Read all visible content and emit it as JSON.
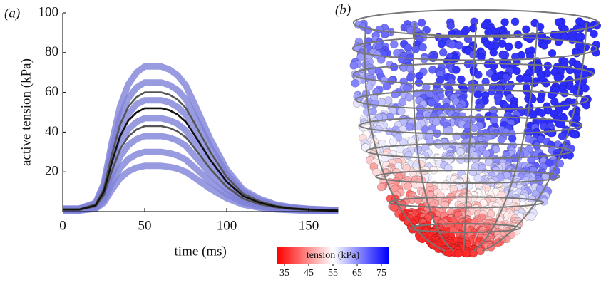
{
  "chart_data": [
    {
      "type": "line",
      "panel_label": "(a)",
      "xlabel": "time (ms)",
      "ylabel": "active tension (kPa)",
      "x": [
        0,
        10,
        20,
        25,
        30,
        35,
        40,
        45,
        50,
        55,
        60,
        65,
        70,
        75,
        80,
        90,
        100,
        110,
        120,
        130,
        140,
        150,
        168
      ],
      "xlim": [
        0,
        168
      ],
      "ylim": [
        0,
        100
      ],
      "xticks": [
        0,
        50,
        100,
        150
      ],
      "yticks": [
        20,
        40,
        60,
        80,
        100
      ],
      "series": [
        {
          "color": "#7f82d8",
          "values": [
            1.5,
            1.5,
            4.4,
            13.9,
            35,
            53,
            64,
            70,
            73,
            73,
            73,
            71.5,
            68.6,
            63.5,
            54.8,
            36.5,
            21.2,
            11,
            6.4,
            3.5,
            2.1,
            1.4,
            0.7
          ]
        },
        {
          "color": "#7f82d8",
          "values": [
            1.3,
            1.3,
            3.9,
            12.4,
            31,
            47.5,
            57,
            62.4,
            65,
            65,
            65,
            63.7,
            61.1,
            56.6,
            48.8,
            32.5,
            18.9,
            9.8,
            5.7,
            3.1,
            1.9,
            1.2,
            0.7
          ]
        },
        {
          "color": "#7f82d8",
          "values": [
            1.1,
            1.1,
            3.4,
            10.6,
            27,
            41,
            49,
            54,
            56,
            56,
            56,
            55,
            52.6,
            48.7,
            42,
            28,
            16.2,
            8.4,
            4.9,
            2.7,
            1.6,
            1.1,
            0.6
          ]
        },
        {
          "color": "#7f82d8",
          "values": [
            0.9,
            0.9,
            2.8,
            8.9,
            22.6,
            34.3,
            41.4,
            45.1,
            47,
            47,
            47,
            46,
            44.2,
            40.9,
            35.3,
            23.5,
            13.6,
            7,
            4.1,
            2.3,
            1.4,
            0.9,
            0.5
          ]
        },
        {
          "color": "#7f82d8",
          "values": [
            0.8,
            0.8,
            2.3,
            7.2,
            18.2,
            27.7,
            33.4,
            36.5,
            38,
            38,
            38,
            37.2,
            35.7,
            33.1,
            28.5,
            19,
            11,
            5.7,
            3.3,
            1.8,
            1.1,
            0.7,
            0.4
          ]
        },
        {
          "color": "#7f82d8",
          "values": [
            0.6,
            0.6,
            1.8,
            5.7,
            14.4,
            21.9,
            26.4,
            28.8,
            30,
            30,
            30,
            29.4,
            28.2,
            26.1,
            22.5,
            15,
            8.7,
            4.5,
            2.6,
            1.4,
            0.9,
            0.6,
            0.3
          ]
        },
        {
          "color": "#7f82d8",
          "values": [
            0.5,
            0.5,
            1.4,
            4.4,
            11,
            16.8,
            20.2,
            22.1,
            23,
            23,
            23,
            22.5,
            21.6,
            20,
            17.3,
            11.5,
            6.7,
            3.5,
            2,
            1.1,
            0.7,
            0.4,
            0.2
          ]
        },
        {
          "color": "#555555",
          "values": [
            1.2,
            1.2,
            3.6,
            11.4,
            28.8,
            43.8,
            52.8,
            57.6,
            60,
            60,
            60,
            58.8,
            56.4,
            52.2,
            45,
            30,
            17.4,
            9,
            5.2,
            2.9,
            1.7,
            1.1,
            0.6
          ]
        },
        {
          "color": "#555555",
          "values": [
            0.9,
            0.9,
            2.6,
            8.2,
            20.6,
            31.4,
            37.8,
            41.3,
            43,
            43,
            43,
            42.1,
            40.4,
            37.4,
            32.3,
            21.5,
            12.5,
            6.5,
            3.7,
            2.1,
            1.2,
            0.8,
            0.4
          ]
        },
        {
          "color": "#111111",
          "values": [
            1,
            1,
            3.1,
            9.9,
            25,
            38,
            45.8,
            49.9,
            52,
            52,
            52,
            51,
            48.9,
            45.2,
            39,
            26,
            15.1,
            7.8,
            4.5,
            2.5,
            1.5,
            1,
            0.5
          ]
        }
      ]
    },
    {
      "type": "colorbar",
      "panel_label": "(b)",
      "label": "tension (kPa)",
      "lim": [
        35,
        75
      ],
      "ticks": [
        35,
        45,
        55,
        65,
        75
      ],
      "colors": [
        "#ff0000",
        "#ffffff",
        "#0000ff"
      ]
    }
  ]
}
